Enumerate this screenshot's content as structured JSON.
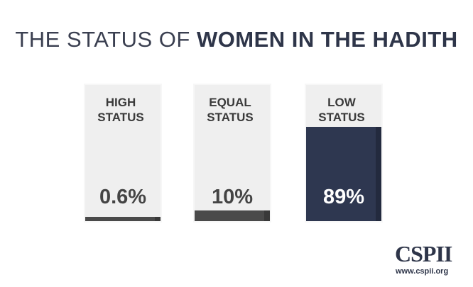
{
  "chart_data": {
    "type": "bar",
    "title": "THE STATUS OF",
    "title_emphasis": "WOMEN IN THE HADITH",
    "categories": [
      "HIGH STATUS",
      "EQUAL STATUS",
      "LOW STATUS"
    ],
    "values": [
      0.6,
      10,
      89
    ],
    "value_labels": [
      "0.6%",
      "10%",
      "89%"
    ],
    "colors": [
      "#4a4a4a",
      "#4a4a4a",
      "#2e3750"
    ],
    "ylim": [
      0,
      100
    ]
  },
  "logo": {
    "name": "CSPII",
    "url": "www.cspii.org"
  }
}
